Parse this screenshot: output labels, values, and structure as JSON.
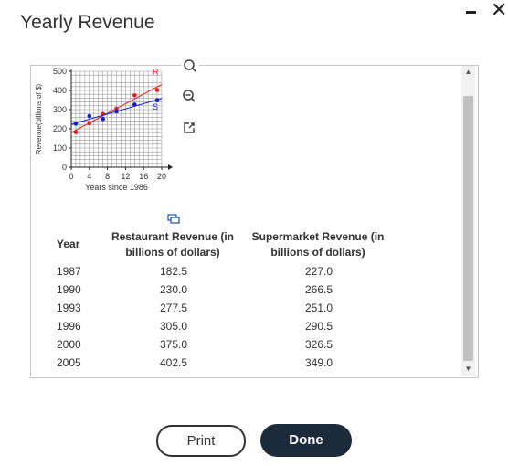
{
  "window": {
    "title": "Yearly Revenue"
  },
  "chart_data": {
    "type": "scatter",
    "ylabel": "Revenue(billions of $)",
    "xlabel": "Years since 1986",
    "xlim": [
      0,
      20
    ],
    "ylim": [
      0,
      500
    ],
    "x_ticks": [
      "0",
      "4",
      "8",
      "12",
      "16",
      "20"
    ],
    "y_ticks": [
      "0",
      "100",
      "200",
      "300",
      "400",
      "500"
    ],
    "grid": true,
    "series": [
      {
        "name": "R",
        "color": "#e02020",
        "x": [
          1,
          4,
          7,
          10,
          14,
          19
        ],
        "y": [
          182.5,
          230.0,
          277.5,
          305.0,
          375.0,
          402.5
        ]
      },
      {
        "name": "S",
        "color": "#1020d0",
        "x": [
          1,
          4,
          7,
          10,
          14,
          19
        ],
        "y": [
          227.0,
          266.5,
          251.0,
          290.5,
          326.5,
          349.0
        ]
      }
    ]
  },
  "table": {
    "headers": {
      "year": "Year",
      "restaurant": [
        "Restaurant Revenue (in",
        "billions of dollars)"
      ],
      "supermarket": [
        "Supermarket Revenue (in",
        "billions of dollars)"
      ]
    },
    "rows": [
      {
        "year": "1987",
        "restaurant": "182.5",
        "supermarket": "227.0"
      },
      {
        "year": "1990",
        "restaurant": "230.0",
        "supermarket": "266.5"
      },
      {
        "year": "1993",
        "restaurant": "277.5",
        "supermarket": "251.0"
      },
      {
        "year": "1996",
        "restaurant": "305.0",
        "supermarket": "290.5"
      },
      {
        "year": "2000",
        "restaurant": "375.0",
        "supermarket": "326.5"
      },
      {
        "year": "2005",
        "restaurant": "402.5",
        "supermarket": "349.0"
      }
    ]
  },
  "tools": {
    "zoom_in": "zoom-in-icon",
    "zoom_out": "zoom-out-icon",
    "popout": "popout-icon",
    "copy": "copy-icon"
  },
  "buttons": {
    "print": "Print",
    "done": "Done"
  }
}
